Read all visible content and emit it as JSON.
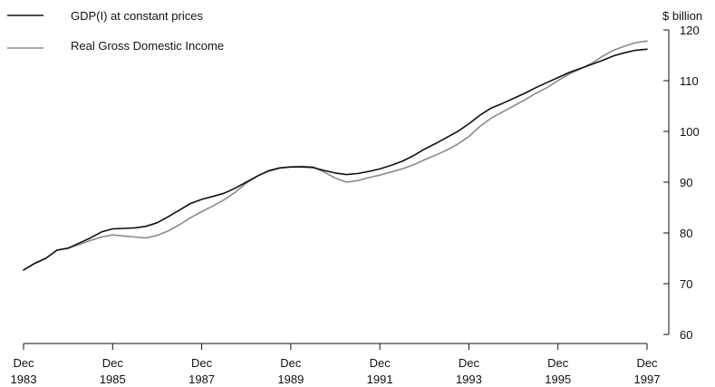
{
  "chart_data": {
    "type": "line",
    "ylabel": "$ billion",
    "ylim": [
      60,
      120
    ],
    "y_ticks": [
      60,
      70,
      80,
      90,
      100,
      110,
      120
    ],
    "y_axis_position": "right",
    "xlim": [
      1983.92,
      1997.92
    ],
    "x_ticks": [
      {
        "x": 1983.92,
        "month": "Dec",
        "year": "1983"
      },
      {
        "x": 1985.92,
        "month": "Dec",
        "year": "1985"
      },
      {
        "x": 1987.92,
        "month": "Dec",
        "year": "1987"
      },
      {
        "x": 1989.92,
        "month": "Dec",
        "year": "1989"
      },
      {
        "x": 1991.92,
        "month": "Dec",
        "year": "1991"
      },
      {
        "x": 1993.92,
        "month": "Dec",
        "year": "1993"
      },
      {
        "x": 1995.92,
        "month": "Dec",
        "year": "1995"
      },
      {
        "x": 1997.92,
        "month": "Dec",
        "year": "1997"
      }
    ],
    "legend_position": "top-left",
    "grid": false,
    "x": [
      1983.92,
      1984.17,
      1984.42,
      1984.67,
      1984.92,
      1985.17,
      1985.42,
      1985.67,
      1985.92,
      1986.17,
      1986.42,
      1986.67,
      1986.92,
      1987.17,
      1987.42,
      1987.67,
      1987.92,
      1988.17,
      1988.42,
      1988.67,
      1988.92,
      1989.17,
      1989.42,
      1989.67,
      1989.92,
      1990.17,
      1990.42,
      1990.67,
      1990.92,
      1991.17,
      1991.42,
      1991.67,
      1991.92,
      1992.17,
      1992.42,
      1992.67,
      1992.92,
      1993.17,
      1993.42,
      1993.67,
      1993.92,
      1994.17,
      1994.42,
      1994.67,
      1994.92,
      1995.17,
      1995.42,
      1995.67,
      1995.92,
      1996.17,
      1996.42,
      1996.67,
      1996.92,
      1997.17,
      1997.42,
      1997.67,
      1997.92
    ],
    "series": [
      {
        "name": "GDP(I) at constant prices",
        "color": "#111111",
        "values": [
          72.7,
          74.0,
          75.0,
          76.6,
          77.0,
          78.0,
          79.0,
          80.2,
          80.8,
          80.9,
          81.0,
          81.3,
          82.0,
          83.2,
          84.5,
          85.8,
          86.6,
          87.2,
          87.8,
          88.8,
          90.0,
          91.2,
          92.2,
          92.8,
          93.0,
          93.0,
          92.9,
          92.3,
          91.8,
          91.5,
          91.7,
          92.1,
          92.6,
          93.3,
          94.1,
          95.2,
          96.5,
          97.6,
          98.8,
          100.0,
          101.5,
          103.2,
          104.6,
          105.5,
          106.5,
          107.5,
          108.6,
          109.6,
          110.6,
          111.6,
          112.4,
          113.2,
          114.0,
          114.9,
          115.5,
          116.0,
          116.2
        ]
      },
      {
        "name": "Real Gross Domestic Income",
        "color": "#8a8a8a",
        "values": [
          72.7,
          74.0,
          75.0,
          76.6,
          77.0,
          77.7,
          78.5,
          79.2,
          79.6,
          79.4,
          79.2,
          79.0,
          79.5,
          80.4,
          81.6,
          83.0,
          84.2,
          85.3,
          86.5,
          88.0,
          89.8,
          91.2,
          92.3,
          92.8,
          93.0,
          93.1,
          93.0,
          92.0,
          90.8,
          90.0,
          90.3,
          90.9,
          91.4,
          92.0,
          92.6,
          93.4,
          94.4,
          95.3,
          96.3,
          97.5,
          99.0,
          101.0,
          102.6,
          103.8,
          105.0,
          106.2,
          107.5,
          108.6,
          110.0,
          111.3,
          112.3,
          113.4,
          114.8,
          116.0,
          116.8,
          117.5,
          117.8
        ]
      }
    ]
  }
}
